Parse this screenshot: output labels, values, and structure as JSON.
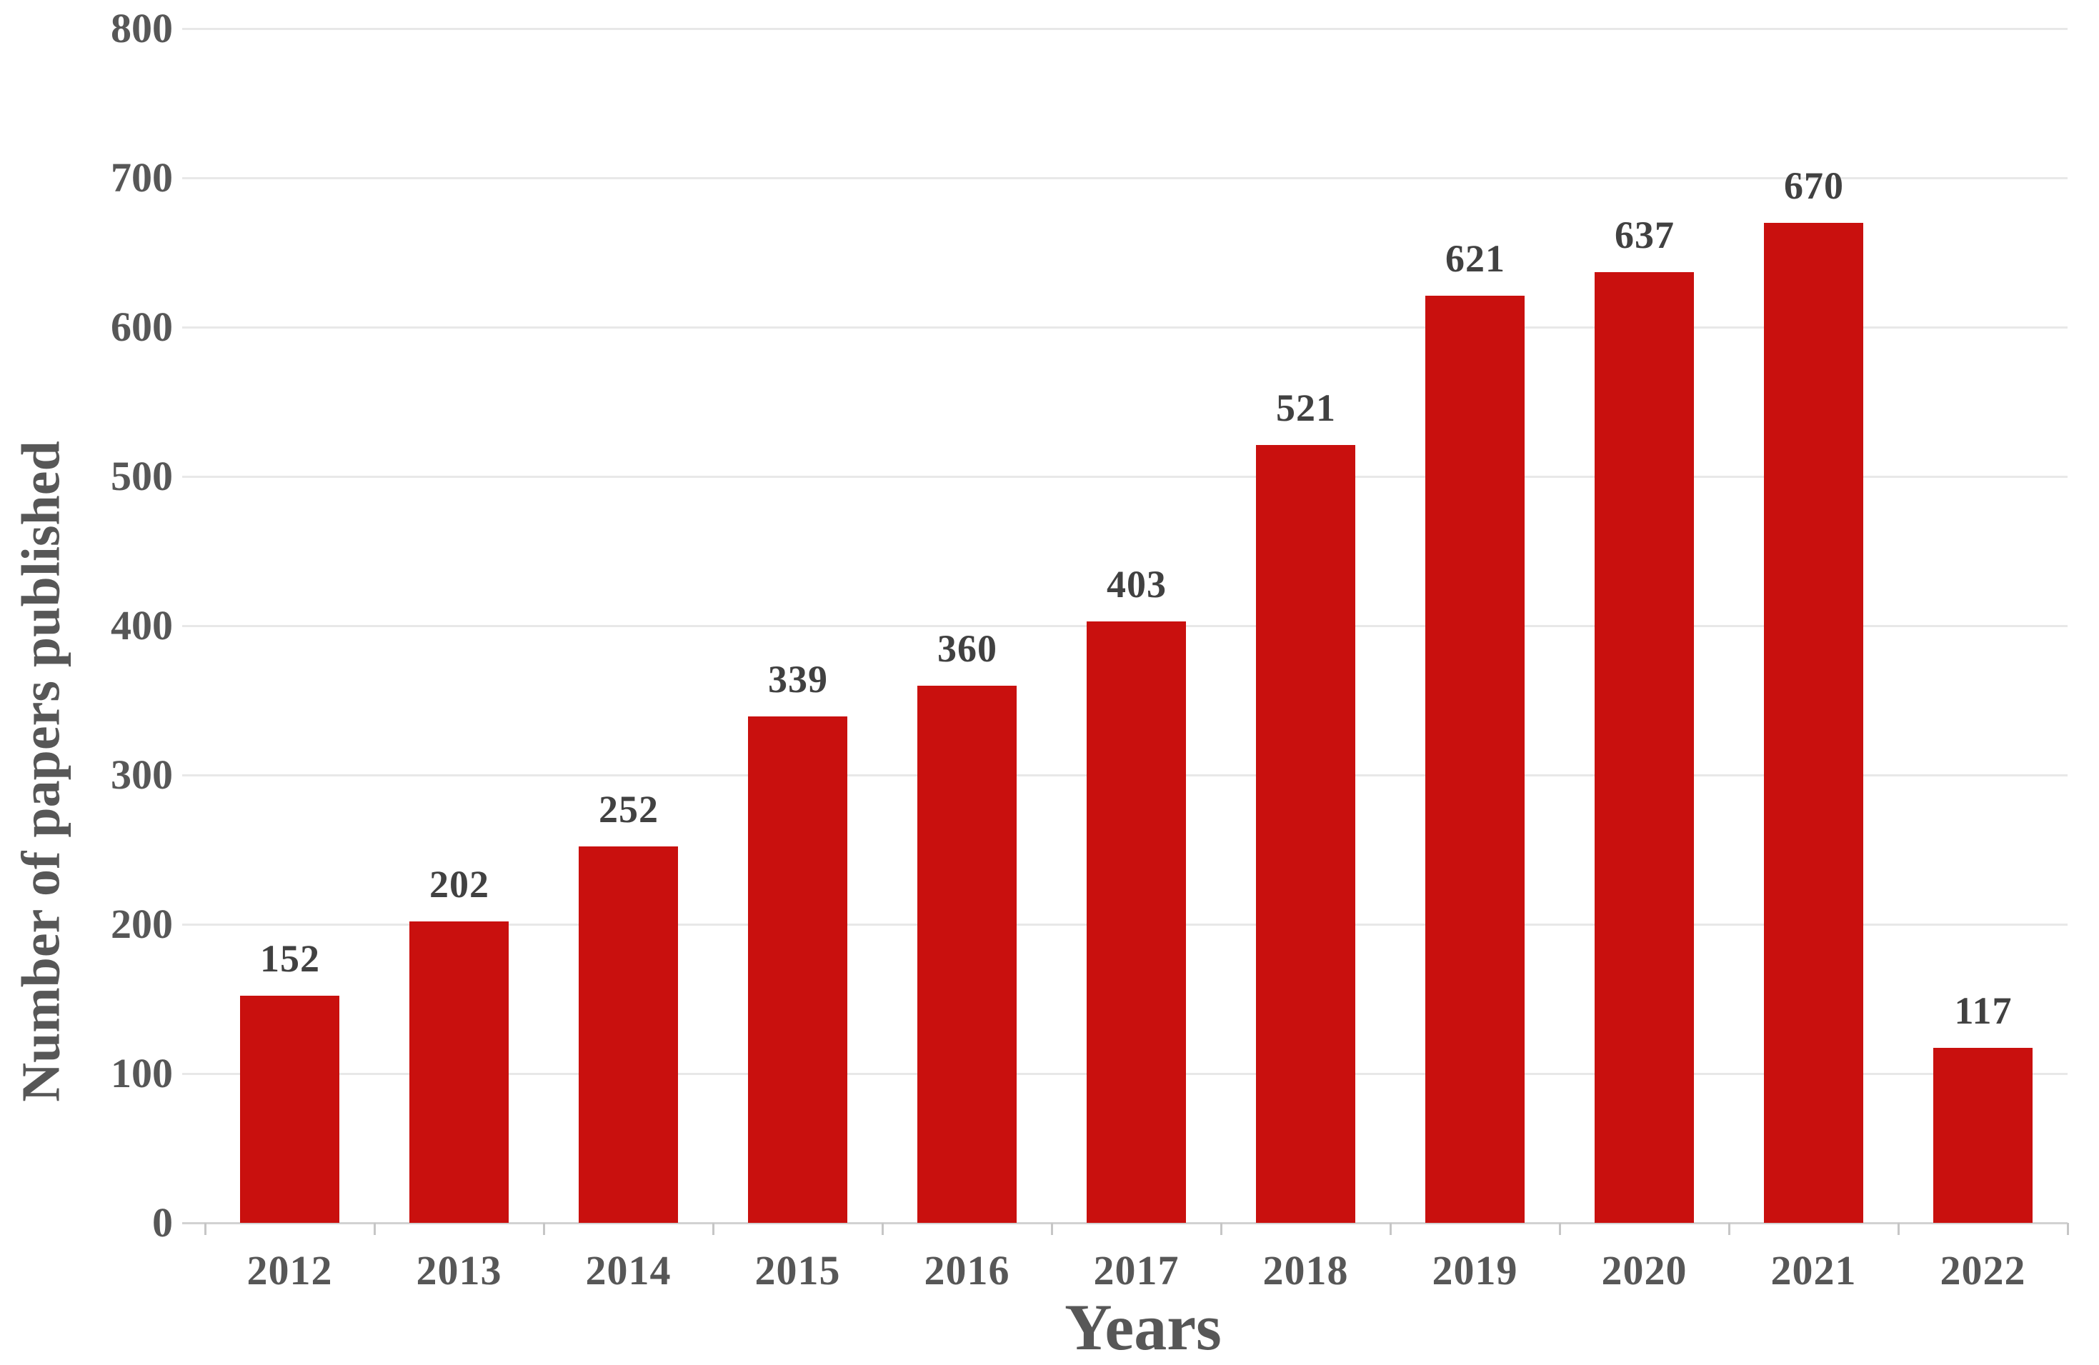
{
  "chart_data": {
    "type": "bar",
    "title": "",
    "xlabel": "Years",
    "ylabel": "Number of papers published",
    "categories": [
      "2012",
      "2013",
      "2014",
      "2015",
      "2016",
      "2017",
      "2018",
      "2019",
      "2020",
      "2021",
      "2022"
    ],
    "values": [
      152,
      202,
      252,
      339,
      360,
      403,
      521,
      621,
      637,
      670,
      117
    ],
    "data_labels_shown": true,
    "ylim": [
      0,
      800
    ],
    "ytick_step": 100,
    "yticks": [
      "0",
      "100",
      "200",
      "300",
      "400",
      "500",
      "600",
      "700",
      "800"
    ],
    "grid": "horizontal",
    "legend": "none",
    "colors": {
      "bar": "#c9100e",
      "data_label_text": "#414141",
      "axis_text": "#575757",
      "gridline": "#e8e8e8",
      "axis_line": "#d2d2d2",
      "tick_mark": "#c6c6c6",
      "background": "#ffffff"
    }
  }
}
